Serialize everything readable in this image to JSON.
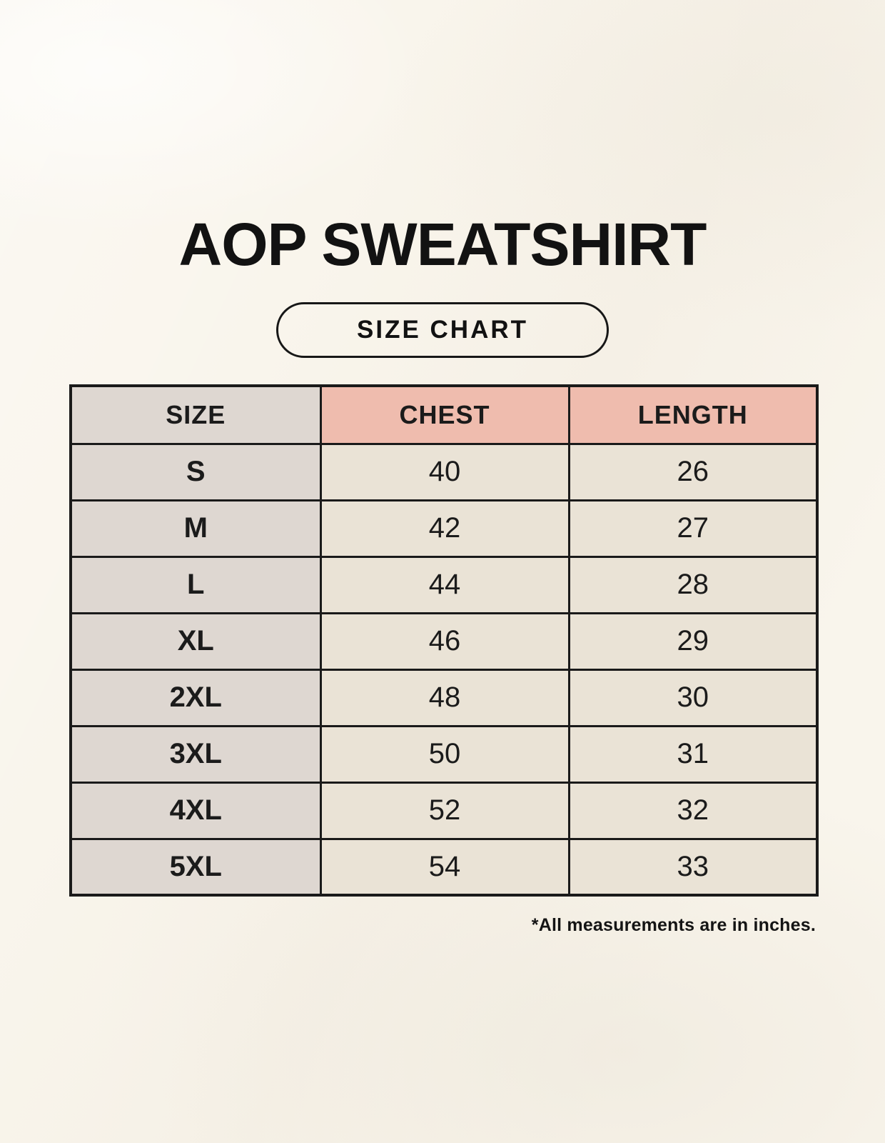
{
  "page": {
    "title": "AOP SWEATSHIRT",
    "badge_label": "SIZE CHART",
    "footnote": "*All measurements are in inches."
  },
  "chart_data": {
    "type": "table",
    "title": "AOP Sweatshirt size chart",
    "columns": [
      "SIZE",
      "CHEST",
      "LENGTH"
    ],
    "rows": [
      [
        "S",
        "40",
        "26"
      ],
      [
        "M",
        "42",
        "27"
      ],
      [
        "L",
        "44",
        "28"
      ],
      [
        "XL",
        "46",
        "29"
      ],
      [
        "2XL",
        "48",
        "30"
      ],
      [
        "3XL",
        "50",
        "31"
      ],
      [
        "4XL",
        "52",
        "32"
      ],
      [
        "5XL",
        "54",
        "33"
      ]
    ],
    "units": "inches"
  },
  "colors": {
    "background": "#f9f5ec",
    "size_column_bg": "#ded7d1",
    "measure_header_bg": "#efbcae",
    "data_cell_bg": "#eae3d6",
    "border": "#1a1a1a",
    "text": "#1b1b1b"
  }
}
